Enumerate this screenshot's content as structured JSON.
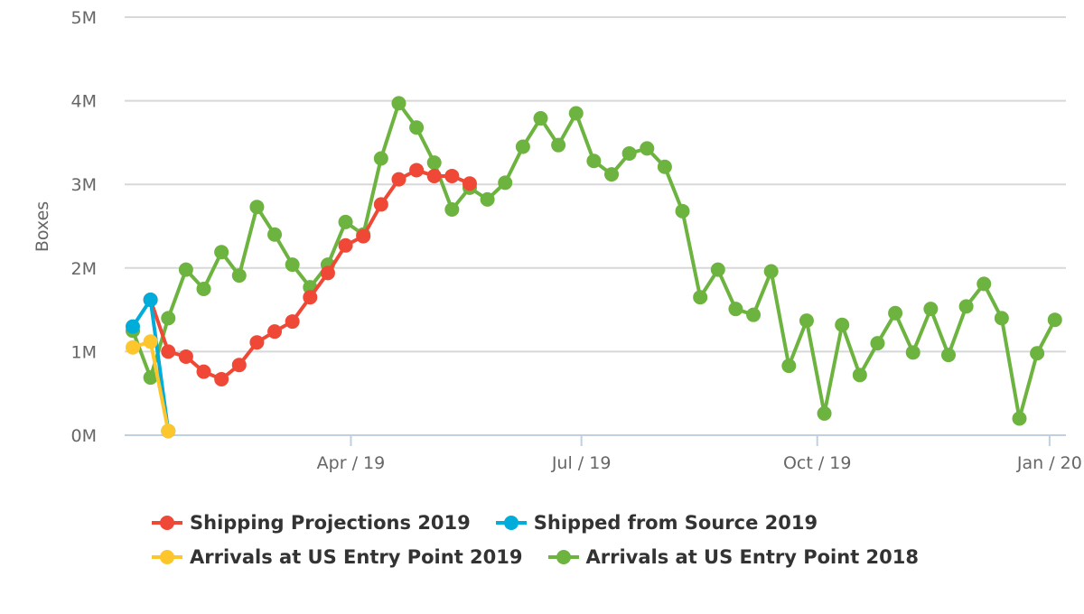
{
  "chart_data": {
    "type": "line",
    "title": "",
    "xlabel": "",
    "ylabel": "Boxes",
    "ylim": [
      0,
      5
    ],
    "y_unit": "M",
    "yticks": [
      "0M",
      "1M",
      "2M",
      "3M",
      "4M",
      "5M"
    ],
    "xlim_week_index": [
      -0.5,
      52.6
    ],
    "xticks": [
      {
        "label": "Apr / 19",
        "week_index": 12.3
      },
      {
        "label": "Jul / 19",
        "week_index": 25.3
      },
      {
        "label": "Oct / 19",
        "week_index": 38.6
      },
      {
        "label": "Jan / 20",
        "week_index": 51.7
      }
    ],
    "grid": true,
    "legend_placement": "bottom",
    "series": [
      {
        "name": "Arrivals at US Entry Point 2018",
        "color": "#6db33f",
        "start_index": 0,
        "values": [
          1.25,
          0.69,
          1.4,
          1.98,
          1.75,
          2.19,
          1.91,
          2.73,
          2.4,
          2.04,
          1.77,
          2.04,
          2.55,
          2.4,
          3.31,
          3.97,
          3.68,
          3.26,
          2.7,
          2.96,
          2.82,
          3.02,
          3.45,
          3.79,
          3.47,
          3.85,
          3.28,
          3.12,
          3.37,
          3.43,
          3.21,
          2.68,
          1.65,
          1.98,
          1.51,
          1.44,
          1.96,
          0.83,
          1.37,
          0.26,
          1.32,
          0.72,
          1.1,
          1.46,
          0.99,
          1.51,
          0.96,
          1.54,
          1.81,
          1.4,
          0.2,
          0.98,
          1.38
        ]
      },
      {
        "name": "Shipping Projections 2019",
        "color": "#ef4836",
        "start_index": 1,
        "values": [
          1.62,
          1.0,
          0.94,
          0.76,
          0.67,
          0.84,
          1.11,
          1.24,
          1.36,
          1.65,
          1.94,
          2.27,
          2.38,
          2.76,
          3.06,
          3.17,
          3.1,
          3.1,
          3.01
        ]
      },
      {
        "name": "Shipped from Source 2019",
        "color": "#00acd9",
        "start_index": 0,
        "values": [
          1.3,
          1.62,
          0.05
        ]
      },
      {
        "name": "Arrivals at US Entry Point 2019",
        "color": "#fdc62d",
        "start_index": 0,
        "values": [
          1.05,
          1.12,
          0.05
        ]
      }
    ]
  },
  "legend": {
    "rows": [
      [
        {
          "name": "Shipping Projections 2019",
          "color": "#ef4836"
        },
        {
          "name": "Shipped from Source 2019",
          "color": "#00acd9"
        }
      ],
      [
        {
          "name": "Arrivals at US Entry Point 2019",
          "color": "#fdc62d"
        },
        {
          "name": "Arrivals at US Entry Point 2018",
          "color": "#6db33f"
        }
      ]
    ]
  }
}
